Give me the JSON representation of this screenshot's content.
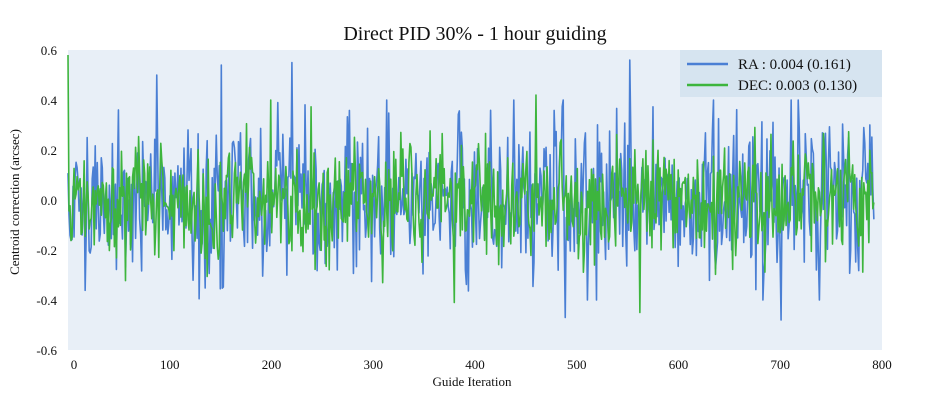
{
  "chart_data": {
    "type": "line",
    "title": "Direct PID 30% - 1 hour guiding",
    "xlabel": "Guide Iteration",
    "ylabel": "Centroid correction (arcsec)",
    "xlim": [
      0,
      800
    ],
    "ylim": [
      -0.6,
      0.6
    ],
    "xticks": [
      "0",
      "100",
      "200",
      "300",
      "400",
      "500",
      "600",
      "700",
      "800"
    ],
    "yticks": [
      "0.6",
      "0.4",
      "0.2",
      "0.0",
      "-0.2",
      "-0.4",
      "-0.6"
    ],
    "xtick_values": [
      0,
      100,
      200,
      300,
      400,
      500,
      600,
      700,
      800
    ],
    "ytick_values": [
      0.6,
      0.4,
      0.2,
      0.0,
      -0.2,
      -0.4,
      -0.6
    ],
    "legend_position": "top-right",
    "background_color": "#e8eff7",
    "legend_background": "#d6e4f0",
    "grid": false,
    "n_points": 800,
    "series": [
      {
        "name": "RA",
        "legend_label": "RA :  0.004 (0.161)",
        "color": "#4a7fd4",
        "mean": 0.004,
        "std": 0.161,
        "features": [
          {
            "x": 88,
            "y": 0.5
          },
          {
            "x": 152,
            "y": 0.54
          },
          {
            "x": 222,
            "y": 0.55
          },
          {
            "x": 493,
            "y": -0.47
          },
          {
            "x": 557,
            "y": 0.56
          },
          {
            "x": 707,
            "y": -0.48
          }
        ]
      },
      {
        "name": "DEC",
        "legend_label": "DEC: 0.003 (0.130)",
        "color": "#3db53d",
        "mean": 0.003,
        "std": 0.13,
        "features": [
          {
            "x": 0,
            "y": 0.58
          },
          {
            "x": 383,
            "y": -0.41
          },
          {
            "x": 464,
            "y": 0.42
          },
          {
            "x": 567,
            "y": -0.45
          }
        ]
      }
    ]
  }
}
